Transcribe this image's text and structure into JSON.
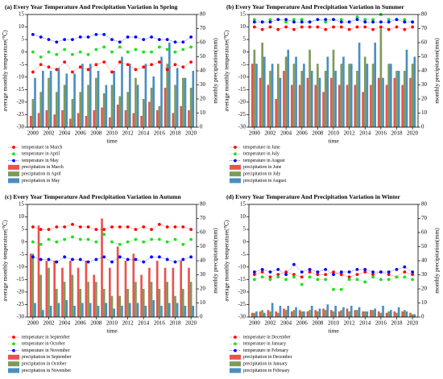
{
  "chart_data": [
    {
      "type": "combo",
      "title": "(a) Every Year Temperature And Precipitation Variation in Spring",
      "xlabel": "time",
      "ylabel": "average monthly temperature(℃)",
      "y2label": "monthly precipitation(mm)",
      "x": [
        2000,
        2001,
        2002,
        2003,
        2004,
        2005,
        2006,
        2007,
        2008,
        2009,
        2010,
        2011,
        2012,
        2013,
        2014,
        2015,
        2016,
        2017,
        2018,
        2019,
        2020
      ],
      "xlim": [
        1999.3,
        2020.7
      ],
      "xticks": [
        2000,
        2002,
        2004,
        2006,
        2008,
        2010,
        2012,
        2014,
        2016,
        2018,
        2020
      ],
      "ylim": [
        -30,
        15
      ],
      "yticks": [
        -30,
        -25,
        -20,
        -15,
        -10,
        -5,
        0,
        5,
        10,
        15
      ],
      "y2lim": [
        0,
        80
      ],
      "y2ticks": [
        0,
        10,
        20,
        30,
        40,
        50,
        60,
        70,
        80
      ],
      "series": [
        {
          "name": "temperature in March",
          "color": "#ff0000",
          "kind": "line",
          "values": [
            -8,
            -5,
            -6,
            -7,
            -4,
            -8,
            -6,
            -7,
            -5,
            -4,
            -8,
            -4,
            -5,
            -7,
            -6,
            -5,
            -4,
            -7,
            -5,
            -6,
            -4
          ]
        },
        {
          "name": "temperature in April",
          "color": "#22dd22",
          "kind": "line",
          "values": [
            0,
            -2,
            0,
            -1,
            1,
            -1,
            0,
            -1,
            1,
            2,
            0,
            2,
            0,
            1,
            0,
            0,
            2,
            1,
            0,
            1,
            2
          ]
        },
        {
          "name": "temperature in May",
          "color": "#0000ff",
          "kind": "line",
          "values": [
            7,
            6,
            5,
            4,
            5,
            5,
            6,
            6,
            7,
            7,
            5,
            4,
            6,
            6,
            5,
            6,
            5,
            5,
            4,
            4,
            6
          ]
        },
        {
          "name": "precipitation in March",
          "color": "#e8544f",
          "kind": "bar",
          "axis": "y2",
          "values": [
            8,
            10,
            12,
            9,
            12,
            6,
            10,
            8,
            12,
            14,
            7,
            16,
            12,
            10,
            8,
            18,
            12,
            28,
            10,
            15,
            12
          ]
        },
        {
          "name": "precipitation in April",
          "color": "#7d9a5a",
          "kind": "bar",
          "axis": "y2",
          "values": [
            20,
            25,
            35,
            25,
            30,
            20,
            25,
            30,
            35,
            24,
            30,
            22,
            25,
            35,
            20,
            28,
            15,
            45,
            30,
            35,
            28
          ]
        },
        {
          "name": "precipitation in May",
          "color": "#4a8ec2",
          "kind": "bar",
          "axis": "y2",
          "values": [
            35,
            40,
            40,
            42,
            38,
            38,
            45,
            45,
            40,
            30,
            40,
            50,
            45,
            30,
            45,
            36,
            50,
            60,
            42,
            35,
            40
          ]
        }
      ]
    },
    {
      "type": "combo",
      "title": "(b) Every Year Temperature And Precipitation Variation in Summer",
      "xlabel": "time",
      "ylabel": "average monthly temperature(℃)",
      "y2label": "monthly precipitation(mm)",
      "x": [
        2000,
        2001,
        2002,
        2003,
        2004,
        2005,
        2006,
        2007,
        2008,
        2009,
        2010,
        2011,
        2012,
        2013,
        2014,
        2015,
        2016,
        2017,
        2018,
        2019,
        2020
      ],
      "xlim": [
        1999.3,
        2020.7
      ],
      "xticks": [
        2000,
        2002,
        2004,
        2006,
        2008,
        2010,
        2012,
        2014,
        2016,
        2018,
        2020
      ],
      "ylim": [
        -30,
        15
      ],
      "yticks": [
        -30,
        -25,
        -20,
        -15,
        -10,
        -5,
        0,
        5,
        10,
        15
      ],
      "y2lim": [
        0,
        80
      ],
      "y2ticks": [
        0,
        10,
        20,
        30,
        40,
        50,
        60,
        70,
        80
      ],
      "series": [
        {
          "name": "temperature in June",
          "color": "#ff0000",
          "kind": "line",
          "values": [
            10,
            9,
            10,
            9,
            10,
            9,
            10,
            10,
            10,
            9,
            10,
            10,
            9,
            10,
            10,
            9,
            10,
            9,
            10,
            9,
            10
          ]
        },
        {
          "name": "temperature in July",
          "color": "#22dd22",
          "kind": "line",
          "values": [
            13,
            12,
            13,
            13,
            12,
            13,
            13,
            12,
            13,
            12,
            13,
            13,
            12,
            14,
            13,
            13,
            15,
            13,
            13,
            13,
            12
          ]
        },
        {
          "name": "temperature in August",
          "color": "#0000ff",
          "kind": "line",
          "values": [
            12,
            12,
            12,
            13,
            13,
            12,
            12,
            12,
            13,
            13,
            13,
            12,
            12,
            13,
            12,
            12,
            12,
            12,
            13,
            12,
            12
          ]
        },
        {
          "name": "precipitation in June",
          "color": "#e8544f",
          "kind": "bar",
          "axis": "y2",
          "values": [
            45,
            35,
            30,
            20,
            40,
            30,
            30,
            35,
            30,
            25,
            35,
            30,
            30,
            30,
            25,
            30,
            35,
            30,
            35,
            30,
            35
          ]
        },
        {
          "name": "precipitation in July",
          "color": "#7d9a5a",
          "kind": "bar",
          "axis": "y2",
          "values": [
            55,
            60,
            40,
            45,
            50,
            45,
            40,
            55,
            45,
            40,
            55,
            45,
            45,
            40,
            50,
            45,
            70,
            45,
            40,
            40,
            45
          ]
        },
        {
          "name": "precipitation in August",
          "color": "#4a8ec2",
          "kind": "bar",
          "axis": "y2",
          "values": [
            45,
            50,
            45,
            35,
            55,
            50,
            45,
            40,
            35,
            50,
            40,
            50,
            45,
            60,
            45,
            60,
            35,
            45,
            40,
            55,
            50
          ]
        }
      ]
    },
    {
      "type": "combo",
      "title": "(c) Every Year Temperature And Precipitation Variation in Autumn",
      "xlabel": "time",
      "ylabel": "average monthly temperature(℃)",
      "y2label": "monthly precipitation(mm)",
      "x": [
        2000,
        2001,
        2002,
        2003,
        2004,
        2005,
        2006,
        2007,
        2008,
        2009,
        2010,
        2011,
        2012,
        2013,
        2014,
        2015,
        2016,
        2017,
        2018,
        2019,
        2020
      ],
      "xlim": [
        1999.3,
        2020.7
      ],
      "xticks": [
        2000,
        2002,
        2004,
        2006,
        2008,
        2010,
        2012,
        2014,
        2016,
        2018,
        2020
      ],
      "ylim": [
        -30,
        15
      ],
      "yticks": [
        -30,
        -25,
        -20,
        -15,
        -10,
        -5,
        0,
        5,
        10,
        15
      ],
      "y2lim": [
        0,
        80
      ],
      "y2ticks": [
        0,
        10,
        20,
        30,
        40,
        50,
        60,
        70,
        80
      ],
      "series": [
        {
          "name": "temperature in September",
          "color": "#ff0000",
          "kind": "line",
          "values": [
            6,
            5,
            5,
            6,
            6,
            7,
            6,
            6,
            5,
            5,
            6,
            6,
            6,
            5,
            6,
            5,
            7,
            6,
            6,
            6,
            5
          ]
        },
        {
          "name": "temperature in October",
          "color": "#22dd22",
          "kind": "line",
          "values": [
            0,
            -1,
            1,
            0,
            1,
            2,
            1,
            1,
            0,
            3,
            0,
            -1,
            0,
            1,
            0,
            1,
            1,
            0,
            1,
            -1,
            1
          ]
        },
        {
          "name": "temperature in November",
          "color": "#0000ff",
          "kind": "line",
          "values": [
            -6,
            -7,
            -7,
            -8,
            -6,
            -7,
            -7,
            -8,
            -7,
            -6,
            -8,
            -6,
            -7,
            -7,
            -8,
            -6,
            -6,
            -7,
            -8,
            -7,
            -6
          ]
        },
        {
          "name": "precipitation in September",
          "color": "#e8544f",
          "kind": "bar",
          "axis": "y2",
          "values": [
            45,
            65,
            40,
            40,
            35,
            40,
            35,
            40,
            30,
            70,
            35,
            50,
            40,
            45,
            30,
            35,
            40,
            35,
            35,
            40,
            35
          ]
        },
        {
          "name": "precipitation in October",
          "color": "#7d9a5a",
          "kind": "bar",
          "axis": "y2",
          "values": [
            45,
            30,
            35,
            20,
            25,
            30,
            20,
            25,
            25,
            20,
            15,
            15,
            20,
            25,
            20,
            25,
            20,
            25,
            15,
            20,
            25
          ]
        },
        {
          "name": "precipitation in November",
          "color": "#4a8ec2",
          "kind": "bar",
          "axis": "y2",
          "values": [
            10,
            5,
            8,
            10,
            12,
            8,
            10,
            10,
            8,
            10,
            6,
            8,
            10,
            10,
            8,
            12,
            8,
            10,
            10,
            8,
            8
          ]
        }
      ]
    },
    {
      "type": "combo",
      "title": "(d) Every Year Temperature And Precipitation Variation in Winter",
      "xlabel": "time",
      "ylabel": "average monthly temperature(℃)",
      "y2label": "monthly precipitation(mm)",
      "x": [
        2000,
        2001,
        2002,
        2003,
        2004,
        2005,
        2006,
        2007,
        2008,
        2009,
        2010,
        2011,
        2012,
        2013,
        2014,
        2015,
        2016,
        2017,
        2018,
        2019,
        2020
      ],
      "xlim": [
        1999.3,
        2020.7
      ],
      "xticks": [
        2000,
        2002,
        2004,
        2006,
        2008,
        2010,
        2012,
        2014,
        2016,
        2018,
        2020
      ],
      "ylim": [
        -30,
        15
      ],
      "yticks": [
        -30,
        -25,
        -20,
        -15,
        -10,
        -5,
        0,
        5,
        10,
        15
      ],
      "y2lim": [
        0,
        80
      ],
      "y2ticks": [
        0,
        10,
        20,
        30,
        40,
        50,
        60,
        70,
        80
      ],
      "series": [
        {
          "name": "temperature in December",
          "color": "#ff0000",
          "kind": "line",
          "values": [
            -13,
            -12,
            -14,
            -13,
            -12,
            -13,
            -14,
            -12,
            -13,
            -13,
            -12,
            -13,
            -14,
            -13,
            -12,
            -13,
            -12,
            -13,
            -14,
            -12,
            -13
          ]
        },
        {
          "name": "temperature in January",
          "color": "#22dd22",
          "kind": "line",
          "values": [
            -15,
            -14,
            -15,
            -14,
            -15,
            -14,
            -17,
            -14,
            -15,
            -15,
            -19,
            -19,
            -15,
            -15,
            -16,
            -14,
            -15,
            -15,
            -14,
            -14,
            -15
          ]
        },
        {
          "name": "temperature in February",
          "color": "#0000ff",
          "kind": "line",
          "values": [
            -12,
            -11,
            -12,
            -11,
            -13,
            -9,
            -12,
            -11,
            -12,
            -11,
            -13,
            -12,
            -12,
            -11,
            -11,
            -12,
            -12,
            -12,
            -11,
            -10,
            -12
          ]
        },
        {
          "name": "precipitation in December",
          "color": "#e8544f",
          "kind": "bar",
          "axis": "y2",
          "values": [
            3,
            4,
            5,
            4,
            6,
            4,
            5,
            4,
            5,
            6,
            5,
            4,
            6,
            5,
            4,
            5,
            4,
            3,
            4,
            4,
            3
          ]
        },
        {
          "name": "precipitation in January",
          "color": "#7d9a5a",
          "kind": "bar",
          "axis": "y2",
          "values": [
            3,
            5,
            4,
            3,
            5,
            5,
            4,
            5,
            4,
            5,
            4,
            5,
            4,
            5,
            4,
            5,
            3,
            4,
            3,
            5,
            2
          ]
        },
        {
          "name": "precipitation in February",
          "color": "#4a8ec2",
          "kind": "bar",
          "axis": "y2",
          "values": [
            4,
            3,
            10,
            8,
            8,
            7,
            4,
            8,
            6,
            9,
            8,
            7,
            8,
            7,
            4,
            6,
            8,
            5,
            7,
            4,
            2
          ]
        }
      ]
    }
  ]
}
